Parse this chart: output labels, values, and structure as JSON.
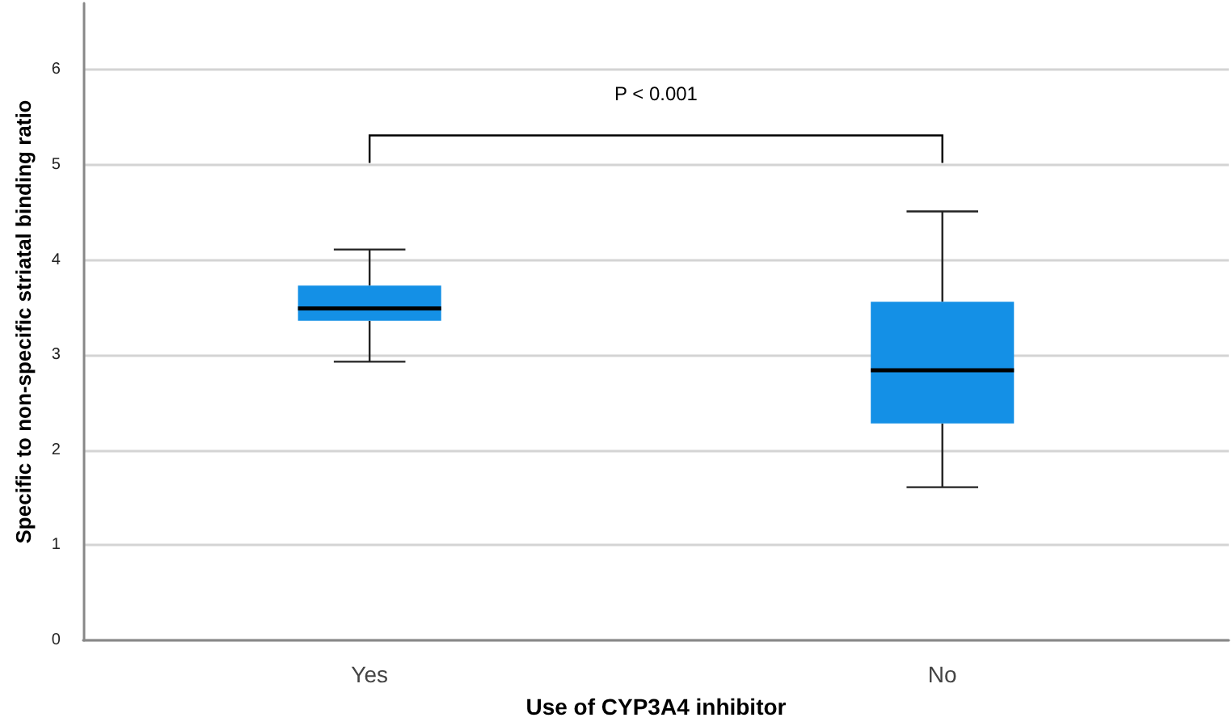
{
  "chart_data": {
    "type": "box",
    "xlabel": "Use of CYP3A4 inhibitor",
    "ylabel": "Specific to non-specific striatal binding ratio",
    "categories": [
      "Yes",
      "No"
    ],
    "boxes": [
      {
        "low": 2.93,
        "q1": 3.36,
        "median": 3.49,
        "q3": 3.73,
        "high": 4.11
      },
      {
        "low": 1.61,
        "q1": 2.28,
        "median": 2.84,
        "q3": 3.56,
        "high": 4.51
      }
    ],
    "color": "#1490e6",
    "ylim": [
      0,
      6.7
    ],
    "yticks": [
      0,
      1,
      2,
      3,
      4,
      5,
      6
    ],
    "grid": "y",
    "annotations": [
      "P < 0.001"
    ]
  }
}
